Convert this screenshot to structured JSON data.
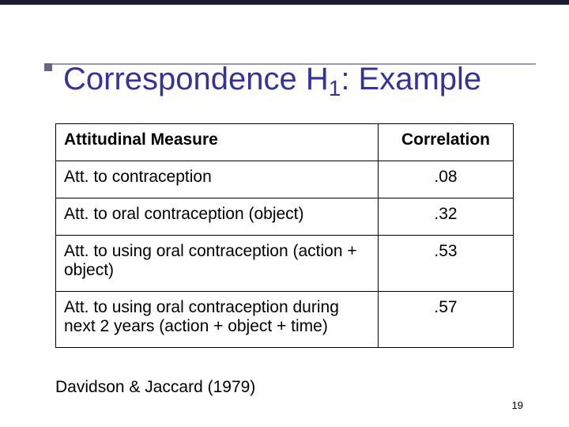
{
  "title_pre": "Correspondence H",
  "title_sub": "1",
  "title_post": ": Example",
  "table": {
    "columns": [
      "Attitudinal Measure",
      "Correlation"
    ],
    "rows": [
      {
        "measure": "Att. to contraception",
        "correlation": ".08"
      },
      {
        "measure": "Att. to oral contraception (object)",
        "correlation": ".32"
      },
      {
        "measure": "Att. to using oral contraception (action + object)",
        "correlation": ".53"
      },
      {
        "measure": "Att. to using oral contraception during next 2 years (action + object + time)",
        "correlation": ".57"
      }
    ]
  },
  "citation": "Davidson & Jaccard (1979)",
  "page_number": "19",
  "colors": {
    "title_color": "#333399",
    "border_color": "#000000",
    "background": "#ffffff",
    "underline": "#9999aa",
    "box": "#666688"
  }
}
